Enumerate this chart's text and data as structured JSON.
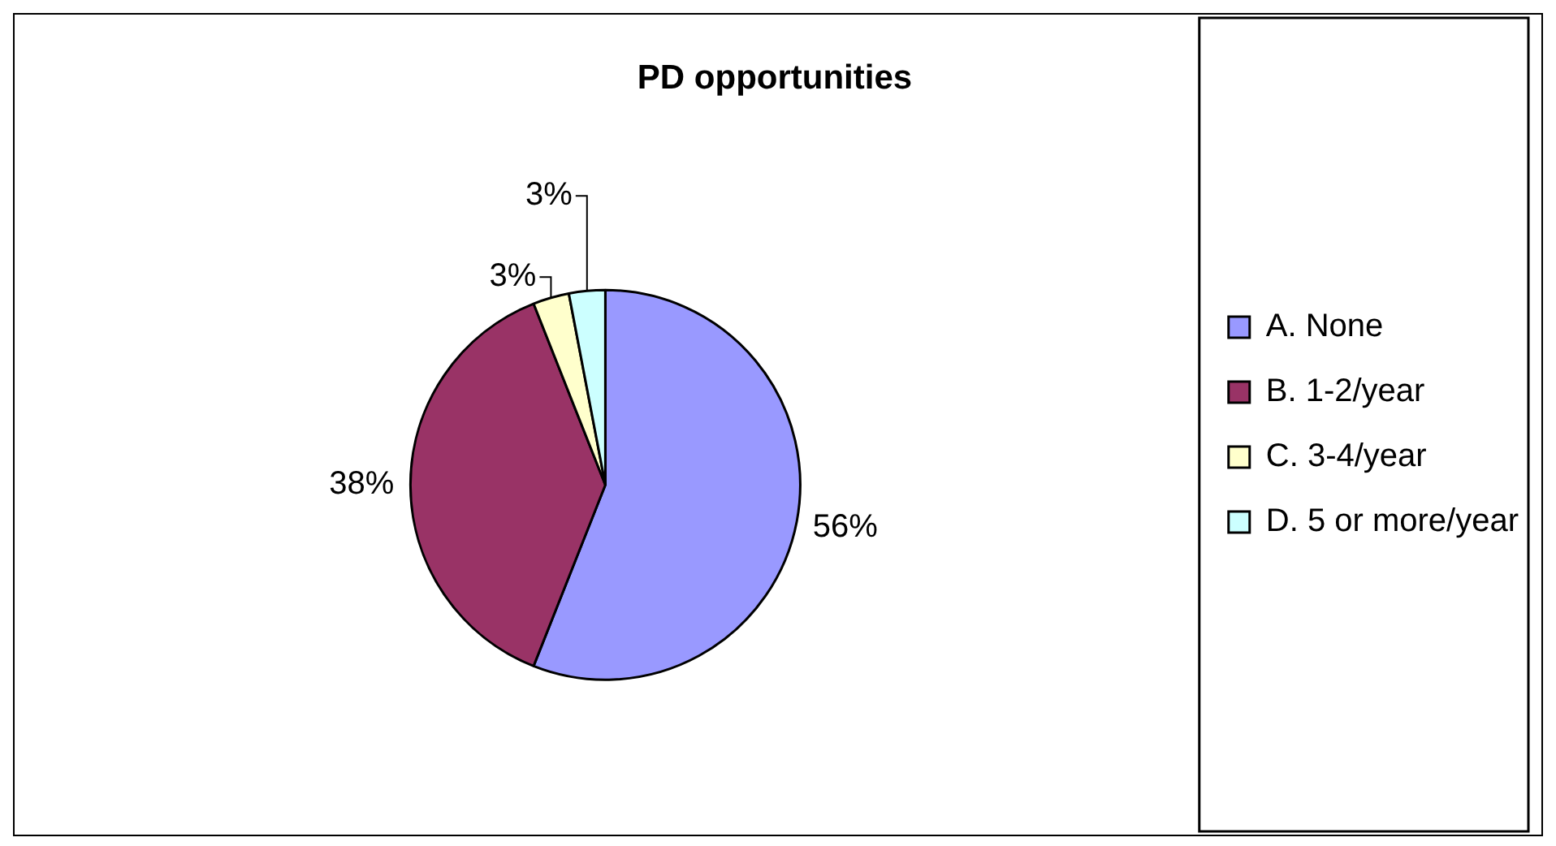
{
  "chart_data": {
    "type": "pie",
    "title": "PD opportunities",
    "categories": [
      "A. None",
      "B. 1-2/year",
      "C. 3-4/year",
      "D. 5 or more/year"
    ],
    "values": [
      56,
      38,
      3,
      3
    ],
    "colors": [
      "#9999ff",
      "#993366",
      "#ffffcc",
      "#ccffff"
    ],
    "value_labels": [
      "56%",
      "38%",
      "3%",
      "3%"
    ],
    "legend": "right"
  }
}
